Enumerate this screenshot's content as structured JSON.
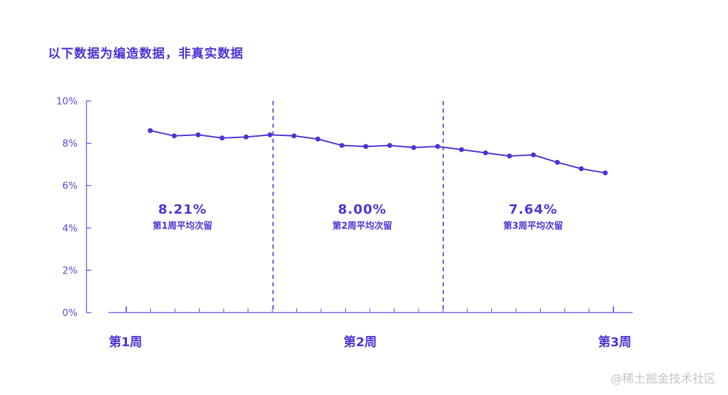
{
  "chart_data": {
    "type": "line",
    "title": "以下数据为编造数据，非真实数据",
    "xlabel": "",
    "ylabel": "",
    "ylim": [
      0,
      10
    ],
    "yticks": [
      "0%",
      "2%",
      "4%",
      "6%",
      "8%",
      "10%"
    ],
    "xtick_labels": [
      "第1周",
      "第2周",
      "第3周"
    ],
    "grid": false,
    "series": [
      {
        "values": [
          8.6,
          8.35,
          8.4,
          8.25,
          8.3,
          8.4,
          8.35,
          8.2,
          7.9,
          7.85,
          7.9,
          7.8,
          7.85,
          7.7,
          7.55,
          7.4,
          7.45,
          7.1,
          6.8,
          6.6
        ]
      }
    ],
    "annotations": [
      {
        "value": "8.21%",
        "label": "第1周平均次留"
      },
      {
        "value": "8.00%",
        "label": "第2周平均次留"
      },
      {
        "value": "7.64%",
        "label": "第3周平均次留"
      }
    ],
    "colors": {
      "accent": "#4a34d6",
      "axis": "#5b45e0",
      "line": "#4a34d6"
    }
  },
  "watermark": "@稀土掘金技术社区"
}
